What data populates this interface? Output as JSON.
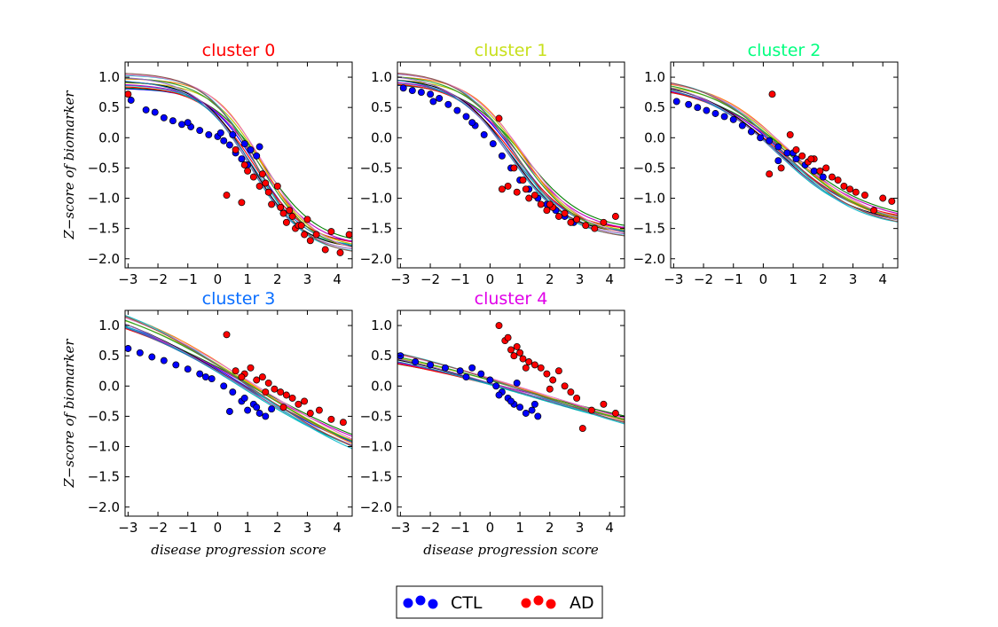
{
  "chart_data": [
    {
      "type": "scatter",
      "title": "cluster 0",
      "title_color": "#ff0000",
      "xlabel": "",
      "ylabel": "Z−score of biomarker",
      "xlim": [
        -3.1,
        4.5
      ],
      "ylim": [
        -2.15,
        1.25
      ],
      "xticks": [
        -3,
        -2,
        -1,
        0,
        1,
        2,
        3,
        4
      ],
      "yticks": [
        1.0,
        0.5,
        0.0,
        -0.5,
        -1.0,
        -1.5,
        -2.0
      ],
      "xtick_labels": [
        "−3",
        "−2",
        "−1",
        "0",
        "1",
        "2",
        "3",
        "4"
      ],
      "ytick_labels": [
        "1.0",
        "0.5",
        "0.0",
        "−0.5",
        "−1.0",
        "−1.5",
        "−2.0"
      ],
      "series": [
        {
          "name": "CTL",
          "color": "#0000ff",
          "x": [
            -2.9,
            -2.4,
            -2.1,
            -1.8,
            -1.5,
            -1.2,
            -0.9,
            -0.6,
            -0.3,
            0.0,
            0.2,
            0.4,
            0.6,
            0.8,
            1.0,
            1.1,
            1.3,
            1.4,
            0.5,
            0.9,
            -1.0,
            0.1
          ],
          "y": [
            0.62,
            0.46,
            0.42,
            0.33,
            0.28,
            0.22,
            0.18,
            0.12,
            0.05,
            0.02,
            -0.05,
            -0.12,
            -0.25,
            -0.35,
            -0.45,
            -0.2,
            -0.3,
            -0.15,
            0.05,
            -0.1,
            0.25,
            0.08
          ]
        },
        {
          "name": "AD",
          "color": "#ff0000",
          "x": [
            -3.0,
            0.3,
            0.6,
            0.8,
            1.0,
            1.2,
            1.4,
            1.5,
            1.7,
            1.8,
            2.0,
            2.1,
            2.2,
            2.3,
            2.5,
            2.6,
            2.7,
            2.9,
            3.1,
            3.3,
            3.6,
            3.8,
            4.1,
            4.4,
            0.9,
            1.6,
            2.4,
            2.8,
            3.0
          ],
          "y": [
            0.72,
            -0.95,
            -0.2,
            -1.07,
            -0.55,
            -0.65,
            -0.8,
            -0.6,
            -0.9,
            -1.1,
            -0.8,
            -1.15,
            -1.25,
            -1.4,
            -1.3,
            -1.5,
            -1.45,
            -1.6,
            -1.7,
            -1.6,
            -1.85,
            -1.55,
            -1.9,
            -1.6,
            -0.45,
            -0.75,
            -1.2,
            -1.45,
            -1.35
          ]
        }
      ],
      "curves": {
        "L": 0.95,
        "H": -1.85,
        "c": 1.3,
        "k": 1.15,
        "spread": 0.12
      }
    },
    {
      "type": "scatter",
      "title": "cluster 1",
      "title_color": "#c8e01c",
      "xlabel": "",
      "ylabel": "",
      "xlim": [
        -3.1,
        4.5
      ],
      "ylim": [
        -2.15,
        1.25
      ],
      "xticks": [
        -3,
        -2,
        -1,
        0,
        1,
        2,
        3,
        4
      ],
      "yticks": [
        1.0,
        0.5,
        0.0,
        -0.5,
        -1.0,
        -1.5,
        -2.0
      ],
      "xtick_labels": [
        "−3",
        "−2",
        "−1",
        "0",
        "1",
        "2",
        "3",
        "4"
      ],
      "ytick_labels": [
        "1.0",
        "0.5",
        "0.0",
        "−0.5",
        "−1.0",
        "−1.5",
        "−2.0"
      ],
      "series": [
        {
          "name": "CTL",
          "color": "#0000ff",
          "x": [
            -2.9,
            -2.6,
            -2.3,
            -2.0,
            -1.7,
            -1.4,
            -1.1,
            -0.8,
            -0.5,
            -0.2,
            0.1,
            0.4,
            0.7,
            1.0,
            1.3,
            1.6,
            1.9,
            2.2,
            2.5,
            2.8,
            -1.9,
            -0.6
          ],
          "y": [
            0.82,
            0.78,
            0.75,
            0.72,
            0.65,
            0.55,
            0.45,
            0.35,
            0.2,
            0.05,
            -0.1,
            -0.3,
            -0.5,
            -0.7,
            -0.85,
            -1.0,
            -1.1,
            -1.2,
            -1.3,
            -1.4,
            0.6,
            0.25
          ]
        },
        {
          "name": "AD",
          "color": "#ff0000",
          "x": [
            0.3,
            0.6,
            0.9,
            1.1,
            1.3,
            1.5,
            1.7,
            1.9,
            2.1,
            2.3,
            2.5,
            2.7,
            2.9,
            3.2,
            3.5,
            3.8,
            4.2,
            0.8,
            1.2,
            2.0,
            0.4
          ],
          "y": [
            0.32,
            -0.8,
            -0.9,
            -0.7,
            -1.0,
            -0.95,
            -1.1,
            -1.2,
            -1.15,
            -1.3,
            -1.25,
            -1.4,
            -1.35,
            -1.45,
            -1.5,
            -1.4,
            -1.3,
            -0.5,
            -0.85,
            -1.1,
            -0.85
          ]
        }
      ],
      "curves": {
        "L": 1.0,
        "H": -1.6,
        "c": 0.9,
        "k": 1.05,
        "spread": 0.1
      }
    },
    {
      "type": "scatter",
      "title": "cluster 2",
      "title_color": "#00ff7f",
      "xlabel": "",
      "ylabel": "",
      "xlim": [
        -3.1,
        4.5
      ],
      "ylim": [
        -2.15,
        1.25
      ],
      "xticks": [
        -3,
        -2,
        -1,
        0,
        1,
        2,
        3,
        4
      ],
      "yticks": [
        1.0,
        0.5,
        0.0,
        -0.5,
        -1.0,
        -1.5,
        -2.0
      ],
      "xtick_labels": [
        "−3",
        "−2",
        "−1",
        "0",
        "1",
        "2",
        "3",
        "4"
      ],
      "ytick_labels": [
        "1.0",
        "0.5",
        "0.0",
        "−0.5",
        "−1.0",
        "−1.5",
        "−2.0"
      ],
      "series": [
        {
          "name": "CTL",
          "color": "#0000ff",
          "x": [
            -2.9,
            -2.5,
            -2.2,
            -1.9,
            -1.6,
            -1.3,
            -1.0,
            -0.7,
            -0.4,
            -0.1,
            0.2,
            0.5,
            0.8,
            1.1,
            1.4,
            1.7,
            2.0,
            0.5,
            1.0,
            1.5
          ],
          "y": [
            0.6,
            0.55,
            0.5,
            0.45,
            0.4,
            0.35,
            0.3,
            0.2,
            0.1,
            0.0,
            -0.05,
            -0.15,
            -0.25,
            -0.35,
            -0.45,
            -0.55,
            -0.65,
            -0.38,
            -0.25,
            -0.4
          ]
        },
        {
          "name": "AD",
          "color": "#ff0000",
          "x": [
            0.3,
            0.6,
            0.9,
            1.1,
            1.3,
            1.5,
            1.7,
            1.9,
            2.1,
            2.3,
            2.5,
            2.7,
            2.9,
            3.1,
            3.4,
            3.7,
            4.0,
            4.3,
            0.2,
            1.6
          ],
          "y": [
            0.72,
            -0.5,
            0.05,
            -0.2,
            -0.3,
            -0.4,
            -0.35,
            -0.55,
            -0.5,
            -0.65,
            -0.7,
            -0.8,
            -0.85,
            -0.9,
            -0.95,
            -1.2,
            -1.0,
            -1.05,
            -0.6,
            -0.35
          ]
        }
      ],
      "curves": {
        "L": 0.95,
        "H": -1.45,
        "c": 0.7,
        "k": 0.75,
        "spread": 0.09
      }
    },
    {
      "type": "scatter",
      "title": "cluster 3",
      "title_color": "#0a6eff",
      "xlabel": "",
      "ylabel": "Z−score of biomarker",
      "xlim": [
        -3.1,
        4.5
      ],
      "ylim": [
        -2.15,
        1.25
      ],
      "xticks": [
        -3,
        -2,
        -1,
        0,
        1,
        2,
        3,
        4
      ],
      "yticks": [
        1.0,
        0.5,
        0.0,
        -0.5,
        -1.0,
        -1.5,
        -2.0
      ],
      "xtick_labels": [
        "−3",
        "−2",
        "−1",
        "0",
        "1",
        "2",
        "3",
        "4"
      ],
      "ytick_labels": [
        "1.0",
        "0.5",
        "0.0",
        "−0.5",
        "−1.0",
        "−1.5",
        "−2.0"
      ],
      "series": [
        {
          "name": "CTL",
          "color": "#0000ff",
          "x": [
            -3.0,
            -2.6,
            -2.2,
            -1.8,
            -1.4,
            -1.0,
            -0.6,
            -0.2,
            0.2,
            0.5,
            0.8,
            1.0,
            1.2,
            1.4,
            1.6,
            1.8,
            0.4,
            0.9,
            1.3,
            -0.4
          ],
          "y": [
            0.62,
            0.55,
            0.48,
            0.42,
            0.35,
            0.28,
            0.2,
            0.12,
            0.0,
            -0.1,
            -0.25,
            -0.4,
            -0.3,
            -0.45,
            -0.5,
            -0.38,
            -0.42,
            -0.2,
            -0.35,
            0.15
          ]
        },
        {
          "name": "AD",
          "color": "#ff0000",
          "x": [
            0.3,
            0.6,
            0.9,
            1.1,
            1.3,
            1.5,
            1.7,
            1.9,
            2.1,
            2.3,
            2.5,
            2.7,
            2.9,
            3.1,
            3.4,
            3.8,
            4.2,
            0.8,
            1.6,
            2.2
          ],
          "y": [
            0.85,
            0.25,
            0.2,
            0.3,
            0.1,
            0.15,
            0.05,
            -0.05,
            -0.1,
            -0.15,
            -0.2,
            -0.3,
            -0.25,
            -0.45,
            -0.4,
            -0.55,
            -0.6,
            0.15,
            -0.1,
            -0.35
          ]
        }
      ],
      "curves": {
        "L": 1.6,
        "H": -1.6,
        "c": 1.0,
        "k": 0.38,
        "spread": 0.14
      }
    },
    {
      "type": "scatter",
      "title": "cluster 4",
      "title_color": "#e000e8",
      "xlabel": "disease progression score",
      "ylabel": "",
      "xlim": [
        -3.1,
        4.5
      ],
      "ylim": [
        -2.15,
        1.25
      ],
      "xticks": [
        -3,
        -2,
        -1,
        0,
        1,
        2,
        3,
        4
      ],
      "yticks": [
        1.0,
        0.5,
        0.0,
        -0.5,
        -1.0,
        -1.5,
        -2.0
      ],
      "xtick_labels": [
        "−3",
        "−2",
        "−1",
        "0",
        "1",
        "2",
        "3",
        "4"
      ],
      "ytick_labels": [
        "1.0",
        "0.5",
        "0.0",
        "−0.5",
        "−1.0",
        "−1.5",
        "−2.0"
      ],
      "series": [
        {
          "name": "CTL",
          "color": "#0000ff",
          "x": [
            -3.0,
            -2.5,
            -2.0,
            -1.5,
            -1.0,
            -0.6,
            -0.3,
            0.0,
            0.2,
            0.4,
            0.6,
            0.8,
            1.0,
            1.2,
            1.4,
            1.6,
            0.3,
            0.7,
            -0.8,
            0.9,
            1.5
          ],
          "y": [
            0.5,
            0.4,
            0.35,
            0.3,
            0.25,
            0.3,
            0.2,
            0.1,
            0.0,
            -0.1,
            -0.2,
            -0.3,
            -0.35,
            -0.45,
            -0.4,
            -0.5,
            -0.15,
            -0.25,
            0.15,
            0.05,
            -0.3
          ]
        },
        {
          "name": "AD",
          "color": "#ff0000",
          "x": [
            0.3,
            0.5,
            0.6,
            0.7,
            0.9,
            1.0,
            1.1,
            1.3,
            1.5,
            1.7,
            1.9,
            2.1,
            2.3,
            2.5,
            2.7,
            2.9,
            3.1,
            3.4,
            3.8,
            4.2,
            0.8,
            1.2,
            2.0
          ],
          "y": [
            1.0,
            0.75,
            0.8,
            0.6,
            0.65,
            0.55,
            0.45,
            0.4,
            0.35,
            0.3,
            0.2,
            0.1,
            0.25,
            0.0,
            -0.1,
            -0.2,
            -0.7,
            -0.4,
            -0.3,
            -0.45,
            0.5,
            0.3,
            -0.05
          ]
        }
      ],
      "curves": {
        "L": 0.9,
        "H": -1.2,
        "c": 1.5,
        "k": 0.28,
        "spread": 0.14
      }
    }
  ],
  "legend": {
    "entries": [
      {
        "label": "CTL",
        "color": "#0000ff"
      },
      {
        "label": "AD",
        "color": "#ff0000"
      }
    ],
    "placement": "bottom-center"
  },
  "curve_palette": [
    "#0000ff",
    "#008000",
    "#ff0000",
    "#00bfbf",
    "#bf00bf",
    "#bfbf00",
    "#000000",
    "#1f77b4",
    "#ff7f0e",
    "#2ca02c",
    "#9467bd",
    "#17becf",
    "#e377c2",
    "#8c564b"
  ]
}
